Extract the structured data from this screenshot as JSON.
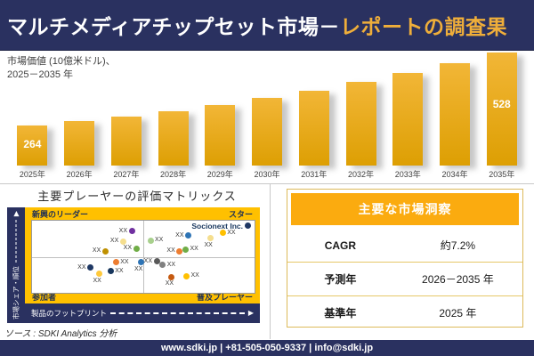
{
  "banner": {
    "title_main": "マルチメディアチップセット市場－",
    "title_accent": "レポートの調査果",
    "accent_color": "#EFAE3A",
    "background_color": "#2A3160"
  },
  "chart_data": [
    {
      "type": "bar",
      "title": "市場価値 (10億米ドル)、2025－2035 年",
      "subtitle_lines": [
        "市場価値 (10億米ドル)、",
        "2025－2035 年"
      ],
      "categories": [
        "2025年",
        "2026年",
        "2027年",
        "2028年",
        "2029年",
        "2030年",
        "2031年",
        "2032年",
        "2033年",
        "2034年",
        "2035年"
      ],
      "values": [
        264,
        283,
        303,
        325,
        349,
        374,
        401,
        430,
        461,
        494,
        528
      ],
      "values_note": "only first and last bars carry data labels (264, 528); intermediate values estimated from ~7.2% CAGR",
      "data_labels": {
        "first": "264",
        "last": "528"
      },
      "bar_color_top": "#F2B637",
      "bar_color_bottom": "#DD9F03",
      "label_color": "#FFFFFF",
      "ylim": [
        0,
        560
      ],
      "grid": false,
      "legend": false
    },
    {
      "type": "scatter",
      "title": "主要プレーヤーの評価マトリックス",
      "xlabel": "製品のフットプリント",
      "ylabel": "市場シェア・順位",
      "frame_color": "#FFC000",
      "axis_bar_color": "#2A3160",
      "quadrant_labels": {
        "top_left": "新興のリーダー",
        "top_right": "スター",
        "bottom_left": "参加者",
        "bottom_right": "普及プレーヤー"
      },
      "highlight_company": "Socionext Inc.",
      "points": [
        {
          "x": 44.8,
          "y": 14.5,
          "color": "#7030A0",
          "label": "XX",
          "label_side": "left"
        },
        {
          "x": 40.9,
          "y": 28.9,
          "color": "#F5DE8E",
          "label": "XX",
          "label_side": "left"
        },
        {
          "x": 46.8,
          "y": 38.6,
          "color": "#70AD47",
          "label": "XX",
          "label_side": "left"
        },
        {
          "x": 32.9,
          "y": 42.2,
          "color": "#BF9000",
          "label": "XX",
          "label_side": "left"
        },
        {
          "x": 53.2,
          "y": 27.7,
          "color": "#A8D08D",
          "label": "XX",
          "label_side": "right"
        },
        {
          "x": 70.2,
          "y": 20.5,
          "color": "#2E74B5",
          "label": "XX",
          "label_side": "left"
        },
        {
          "x": 96.8,
          "y": 7.2,
          "color": "#1F3864",
          "label": "Socionext Inc.",
          "label_side": "left"
        },
        {
          "x": 80.2,
          "y": 24.1,
          "color": "#F5DE8E",
          "label": "XX",
          "label_side": "below"
        },
        {
          "x": 85.7,
          "y": 16.9,
          "color": "#FFC000",
          "label": "XX",
          "label_side": "right"
        },
        {
          "x": 66.3,
          "y": 42.2,
          "color": "#ED7D31",
          "label": "XX",
          "label_side": "left"
        },
        {
          "x": 69.0,
          "y": 39.8,
          "color": "#70AD47",
          "label": "XX",
          "label_side": "right"
        },
        {
          "x": 48.8,
          "y": 57.8,
          "color": "#2E74B5",
          "label": "XX",
          "label_side": "below"
        },
        {
          "x": 37.7,
          "y": 57.8,
          "color": "#ED7D31",
          "label": "XX",
          "label_side": "right"
        },
        {
          "x": 26.2,
          "y": 65.1,
          "color": "#1F3864",
          "label": "XX",
          "label_side": "left"
        },
        {
          "x": 35.3,
          "y": 69.9,
          "color": "#17365D",
          "label": "XX",
          "label_side": "right"
        },
        {
          "x": 30.2,
          "y": 73.5,
          "color": "#FFC93C",
          "label": "XX",
          "label_side": "below"
        },
        {
          "x": 56.0,
          "y": 56.6,
          "color": "#595959",
          "label": "XX",
          "label_side": "left"
        },
        {
          "x": 58.7,
          "y": 61.4,
          "color": "#808080",
          "label": "XX",
          "label_side": "right"
        },
        {
          "x": 62.7,
          "y": 78.3,
          "color": "#C55A11",
          "label": "XX",
          "label_side": "below"
        },
        {
          "x": 69.4,
          "y": 77.1,
          "color": "#FFC000",
          "label": "XX",
          "label_side": "right"
        }
      ]
    }
  ],
  "insights": {
    "header": "主要な市場洞察",
    "header_color": "#FBAB0F",
    "rows": [
      {
        "label": "CAGR",
        "value": "約7.2%"
      },
      {
        "label": "予測年",
        "value": "2026－2035 年"
      },
      {
        "label": "基準年",
        "value": "2025 年"
      }
    ]
  },
  "icons": {
    "axis_arrow_right": "▶",
    "axis_arrow_up": "▶"
  },
  "source": {
    "text": "ソース : SDKI Analytics 分析"
  },
  "footer": {
    "text": "www.sdki.jp | +81-505-050-9337 | info@sdki.jp"
  }
}
